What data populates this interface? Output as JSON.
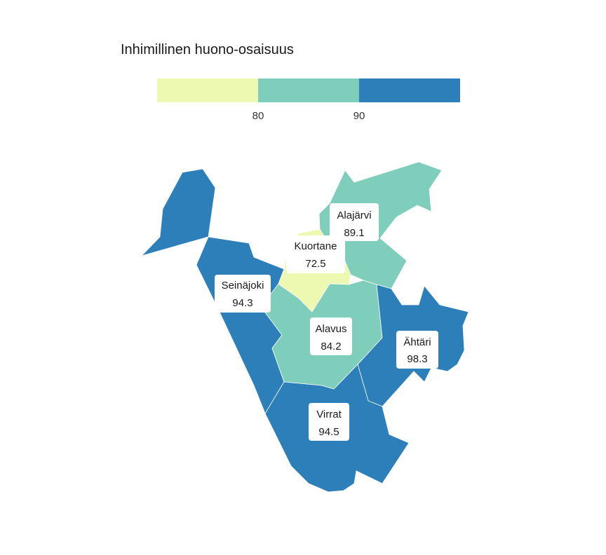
{
  "legend": {
    "title": "Inhimillinen huono-osaisuus",
    "breaks": [
      "80",
      "90"
    ],
    "colors": [
      "#edf8b1",
      "#7fcdbb",
      "#2c7fb8"
    ]
  },
  "regions": [
    {
      "key": "northwest",
      "name": "",
      "value": null,
      "class_index": 2
    },
    {
      "name": "Alajärvi",
      "value": "89.1",
      "class_index": 1
    },
    {
      "name": "Kuortane",
      "value": "72.5",
      "class_index": 0
    },
    {
      "name": "Seinäjoki",
      "value": "94.3",
      "class_index": 2
    },
    {
      "name": "Alavus",
      "value": "84.2",
      "class_index": 1
    },
    {
      "name": "Ähtäri",
      "value": "98.3",
      "class_index": 2
    },
    {
      "name": "Virrat",
      "value": "94.5",
      "class_index": 2
    }
  ]
}
